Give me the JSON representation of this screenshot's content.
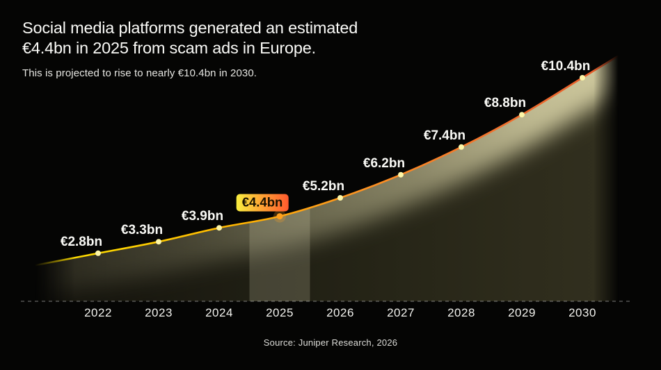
{
  "header": {
    "title_line1": "Social media platforms generated an estimated",
    "title_line2": "€4.4bn in 2025 from scam ads in Europe.",
    "subtitle": "This is projected to rise to nearly €10.4bn in 2030."
  },
  "source": "Source: Juniper Research, 2026",
  "chart_data": {
    "type": "area",
    "title": "Social media platforms generated an estimated €4.4bn in 2025 from scam ads in Europe.",
    "subtitle": "This is projected to rise to nearly €10.4bn in 2030.",
    "x": [
      2022,
      2023,
      2024,
      2025,
      2026,
      2027,
      2028,
      2029,
      2030
    ],
    "values": [
      2.8,
      3.3,
      3.9,
      4.4,
      5.2,
      6.2,
      7.4,
      8.8,
      10.4
    ],
    "point_labels": [
      "€2.8bn",
      "€3.3bn",
      "€3.9bn",
      "€4.4bn",
      "€5.2bn",
      "€6.2bn",
      "€7.4bn",
      "€8.8bn",
      "€10.4bn"
    ],
    "x_tick_labels": [
      "2022",
      "2023",
      "2024",
      "2025",
      "2026",
      "2027",
      "2028",
      "2029",
      "2030"
    ],
    "unit": "€bn",
    "highlight_x": 2025,
    "highlight_label": "€4.4bn",
    "ylim": [
      0,
      12
    ],
    "grid": false,
    "legend": false,
    "colors": {
      "background": "#050504",
      "line_gradient": [
        "#f2d600",
        "#ffd800",
        "#ffb400",
        "#ff9420",
        "#f4722c",
        "#e4582b"
      ],
      "dot": "#fdf6a8",
      "dot_highlight": "#ffa01e",
      "badge_gradient": [
        "#f9ee3f",
        "#ff9a33",
        "#ff5a2e"
      ],
      "badge_text": "#191200",
      "area_dark": "#12110b",
      "area_light": "#32301f",
      "area_glow": "#d9d3a6",
      "highlight_band": "rgba(226,221,186,0.20)",
      "axis_dash": "rgba(255,255,255,0.38)",
      "value_label": "#fafaf6",
      "axis_label": "#f2f2ee",
      "title": "#fbfbf8",
      "subtitle": "#e6e6e2",
      "source": "#dcdcd8"
    }
  }
}
